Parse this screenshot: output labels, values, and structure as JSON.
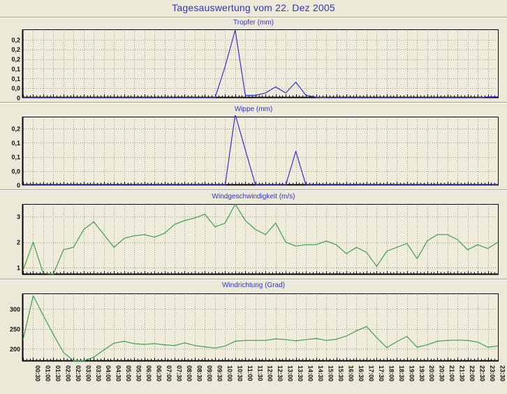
{
  "title": "Tagesauswertung vom 22. Dez 2005",
  "colors": {
    "page_background": "#ece9d8",
    "plot_background": "#efecdb",
    "axis": "#000000",
    "grid": "#9a9a9a",
    "title_blue": "#3434c0",
    "chart_title_blue": "#3333cc",
    "line_blue": "#3333cc",
    "line_green": "#3aa054"
  },
  "x_axis": {
    "first_point": "00:00",
    "step_minutes": 30,
    "minor_tick_minutes": 10,
    "grid_style": "dashed",
    "labels": [
      "00:30",
      "01:00",
      "01:30",
      "02:00",
      "02:30",
      "03:00",
      "03:30",
      "04:00",
      "04:30",
      "05:00",
      "05:30",
      "06:00",
      "06:30",
      "07:00",
      "07:30",
      "08:00",
      "08:30",
      "09:00",
      "09:30",
      "10:00",
      "10:30",
      "11:00",
      "11:30",
      "12:00",
      "12:30",
      "13:00",
      "13:30",
      "14:00",
      "14:30",
      "15:00",
      "15:30",
      "16:00",
      "16:30",
      "17:00",
      "17:30",
      "18:00",
      "18:30",
      "19:00",
      "19:30",
      "20:00",
      "20:30",
      "21:00",
      "21:30",
      "22:00",
      "22:30",
      "23:00",
      "23:30"
    ]
  },
  "chart_data": [
    {
      "type": "line",
      "title": "Tropfer (mm)",
      "unit": "mm",
      "color": "#3333cc",
      "ylim": [
        0,
        0.283
      ],
      "y_ticks": [
        {
          "v": 0.24,
          "label": "0,2"
        },
        {
          "v": 0.2,
          "label": "0,2"
        },
        {
          "v": 0.16,
          "label": "0,2"
        },
        {
          "v": 0.12,
          "label": "0,1"
        },
        {
          "v": 0.08,
          "label": "0,1"
        },
        {
          "v": 0.04,
          "label": "0,0"
        },
        {
          "v": 0,
          "label": "0"
        }
      ],
      "values": [
        0,
        0,
        0,
        0,
        0,
        0,
        0,
        0,
        0,
        0,
        0,
        0,
        0,
        0,
        0,
        0,
        0,
        0,
        0,
        0,
        0.13,
        0.28,
        0.01,
        0.01,
        0.02,
        0.045,
        0.02,
        0.065,
        0.01,
        0.003,
        0,
        0,
        0,
        0,
        0,
        0,
        0,
        0,
        0,
        0,
        0,
        0,
        0,
        0,
        0,
        0,
        0.004,
        0.004
      ]
    },
    {
      "type": "line",
      "title": "Wippe (mm)",
      "unit": "mm",
      "color": "#3333cc",
      "ylim": [
        0,
        0.242
      ],
      "y_ticks": [
        {
          "v": 0.2,
          "label": "0,2"
        },
        {
          "v": 0.15,
          "label": "0,1"
        },
        {
          "v": 0.1,
          "label": "0,1"
        },
        {
          "v": 0.05,
          "label": "0,0"
        },
        {
          "v": 0,
          "label": "0"
        }
      ],
      "values": [
        0,
        0,
        0,
        0,
        0,
        0,
        0,
        0,
        0,
        0,
        0,
        0,
        0,
        0,
        0,
        0,
        0,
        0,
        0,
        0,
        0,
        0.25,
        0.125,
        0,
        0,
        0,
        0,
        0.12,
        0,
        0,
        0,
        0,
        0,
        0,
        0,
        0,
        0,
        0,
        0,
        0,
        0,
        0,
        0,
        0,
        0,
        0,
        0,
        0
      ]
    },
    {
      "type": "line",
      "title": "Windgeschwindigkeit (m/s)",
      "unit": "m/s",
      "color": "#3aa054",
      "ylim": [
        0.73,
        3.5
      ],
      "y_ticks": [
        {
          "v": 3,
          "label": "3"
        },
        {
          "v": 2,
          "label": "2"
        },
        {
          "v": 1,
          "label": "1"
        }
      ],
      "values": [
        0.9,
        2.0,
        0.78,
        0.75,
        1.7,
        1.8,
        2.5,
        2.8,
        2.3,
        1.8,
        2.15,
        2.25,
        2.3,
        2.2,
        2.35,
        2.7,
        2.85,
        2.95,
        3.1,
        2.6,
        2.75,
        3.5,
        2.85,
        2.5,
        2.3,
        2.75,
        2.0,
        1.85,
        1.9,
        1.9,
        2.05,
        1.9,
        1.55,
        1.8,
        1.6,
        1.05,
        1.65,
        1.8,
        1.95,
        1.35,
        2.05,
        2.3,
        2.3,
        2.1,
        1.7,
        1.9,
        1.75,
        2.0
      ]
    },
    {
      "type": "line",
      "title": "Windrichtung (Grad)",
      "unit": "Grad",
      "color": "#3aa054",
      "ylim": [
        169,
        339
      ],
      "y_ticks": [
        {
          "v": 300,
          "label": "300"
        },
        {
          "v": 250,
          "label": "250"
        },
        {
          "v": 200,
          "label": "200"
        }
      ],
      "values": [
        223,
        333,
        284,
        236,
        191,
        170,
        170,
        179,
        197,
        214,
        219,
        213,
        211,
        213,
        210,
        208,
        215,
        208,
        205,
        202,
        207,
        219,
        221,
        221,
        221,
        225,
        223,
        220,
        223,
        226,
        221,
        224,
        232,
        245,
        256,
        228,
        203,
        218,
        231,
        204,
        210,
        219,
        221,
        222,
        221,
        217,
        204,
        207
      ]
    }
  ]
}
